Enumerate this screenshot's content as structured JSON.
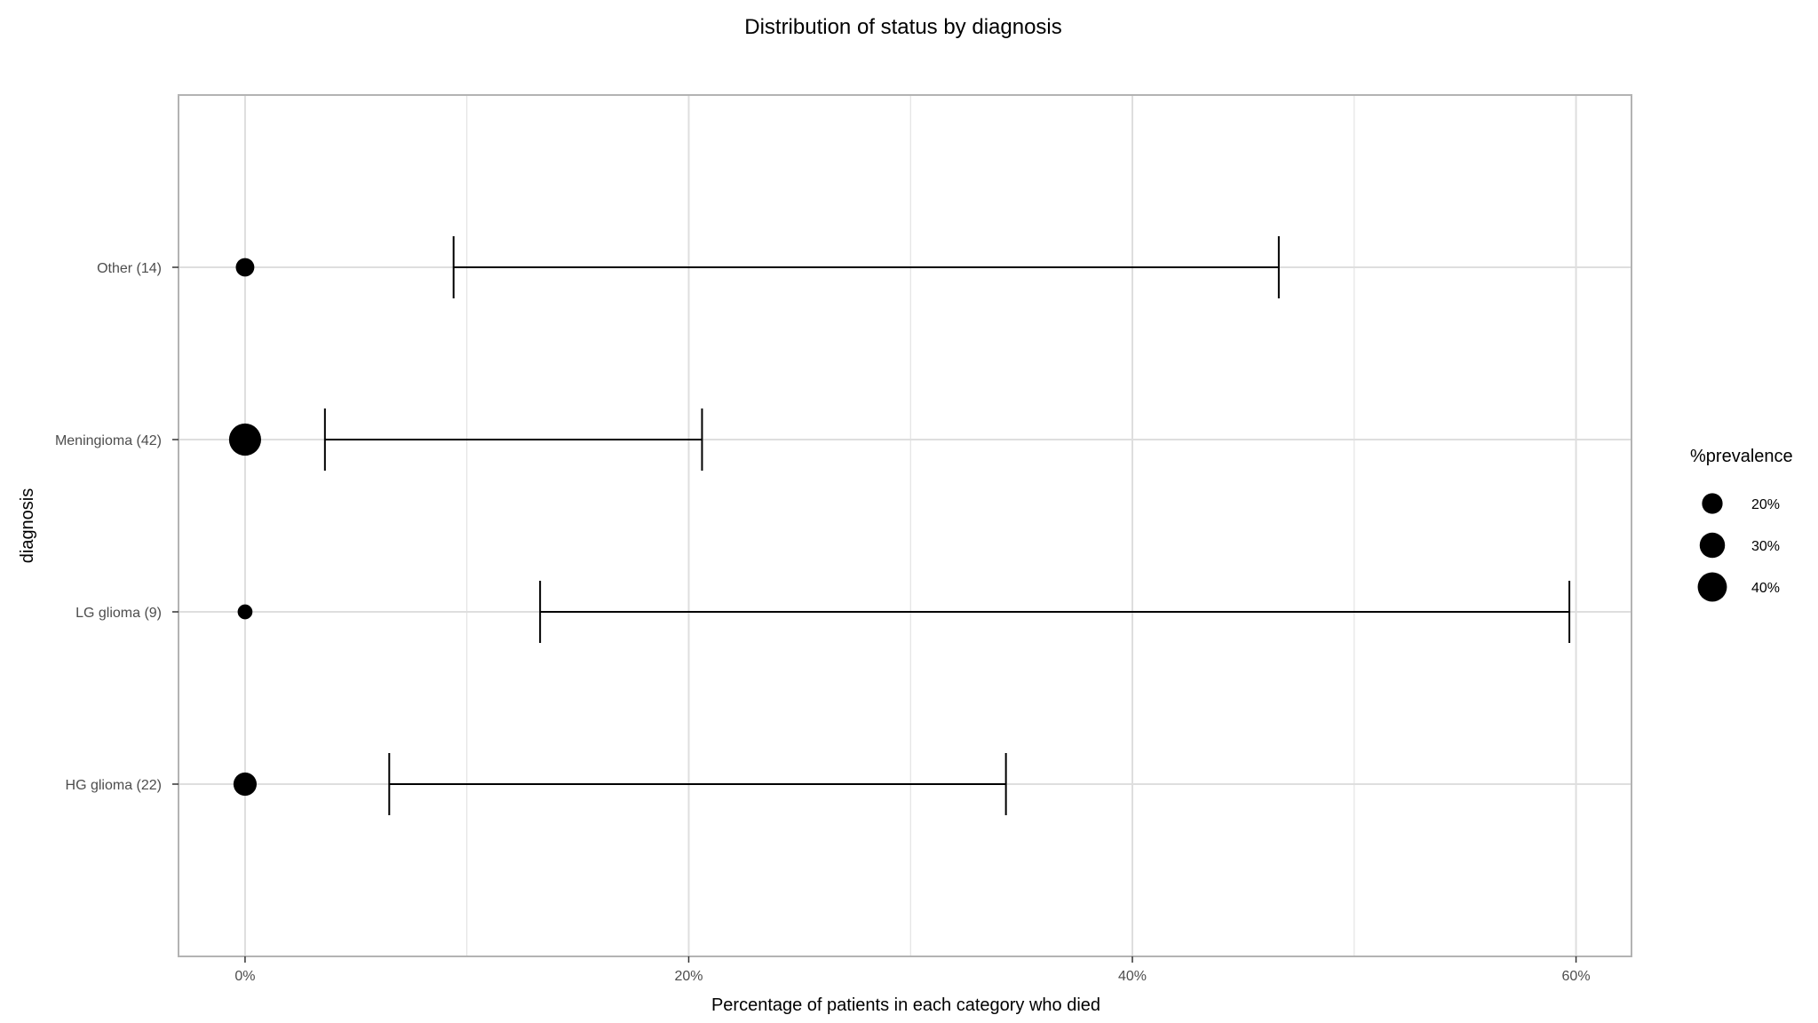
{
  "chart_data": {
    "type": "scatter",
    "title": "Distribution of status by diagnosis",
    "xlabel": "Percentage of patients in each category who died",
    "ylabel": "diagnosis",
    "xlim": [
      -3,
      62.5
    ],
    "x_ticks": [
      {
        "value": 0,
        "label": "0%"
      },
      {
        "value": 20,
        "label": "20%"
      },
      {
        "value": 40,
        "label": "40%"
      },
      {
        "value": 60,
        "label": "60%"
      }
    ],
    "x_minor_ticks": [
      10,
      30,
      50
    ],
    "categories": [
      "HG glioma (22)",
      "LG glioma (9)",
      "Meningioma (42)",
      "Other (14)"
    ],
    "points": [
      {
        "category": "HG glioma (22)",
        "x": 0,
        "prevalence": 25.3,
        "ci_low": 6.5,
        "ci_high": 34.3
      },
      {
        "category": "LG glioma (9)",
        "x": 0,
        "prevalence": 10.3,
        "ci_low": 13.3,
        "ci_high": 59.7
      },
      {
        "category": "Meningioma (42)",
        "x": 0,
        "prevalence": 48.3,
        "ci_low": 3.6,
        "ci_high": 20.6
      },
      {
        "category": "Other (14)",
        "x": 0,
        "prevalence": 16.1,
        "ci_low": 9.4,
        "ci_high": 46.6
      }
    ],
    "legend": {
      "title": "%prevalence",
      "position": "right",
      "entries": [
        {
          "label": "20%",
          "value": 20
        },
        {
          "label": "30%",
          "value": 30
        },
        {
          "label": "40%",
          "value": 40
        }
      ]
    },
    "grid": true,
    "colors": {
      "points": "#000000",
      "grid": "#dedede",
      "border": "#b3b3b3"
    }
  }
}
